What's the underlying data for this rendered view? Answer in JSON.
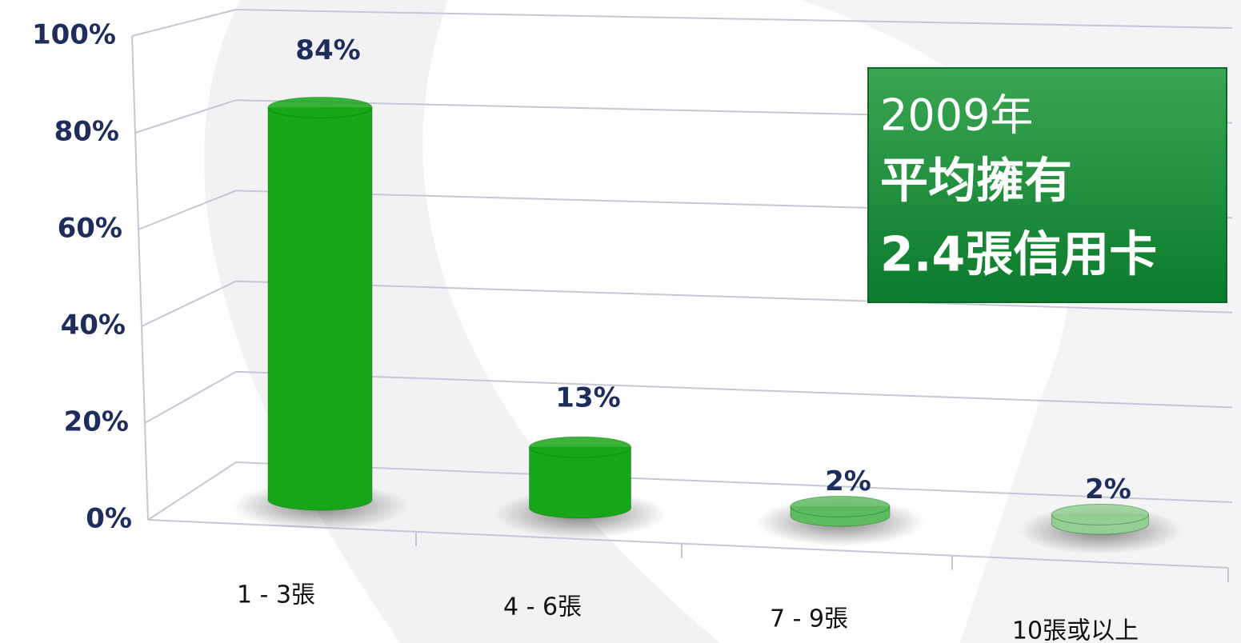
{
  "chart_data": {
    "type": "bar3d",
    "categories": [
      "1 - 3張",
      "4 - 6張",
      "7 - 9張",
      "10張或以上"
    ],
    "values": [
      84,
      13,
      2,
      2
    ],
    "value_labels": [
      "84%",
      "13%",
      "2%",
      "2%"
    ],
    "colors": [
      "#17a617",
      "#17a617",
      "#5fbb5f",
      "#93cf93"
    ],
    "ylim": [
      0,
      100
    ],
    "yticks": [
      {
        "value": 0,
        "label": "0%"
      },
      {
        "value": 20,
        "label": "20%"
      },
      {
        "value": 40,
        "label": "40%"
      },
      {
        "value": 60,
        "label": "60%"
      },
      {
        "value": 80,
        "label": "80%"
      },
      {
        "value": 100,
        "label": "100%"
      }
    ],
    "grid": true,
    "annotation": [
      "2009年",
      "平均擁有",
      "2.4張信用卡"
    ]
  }
}
